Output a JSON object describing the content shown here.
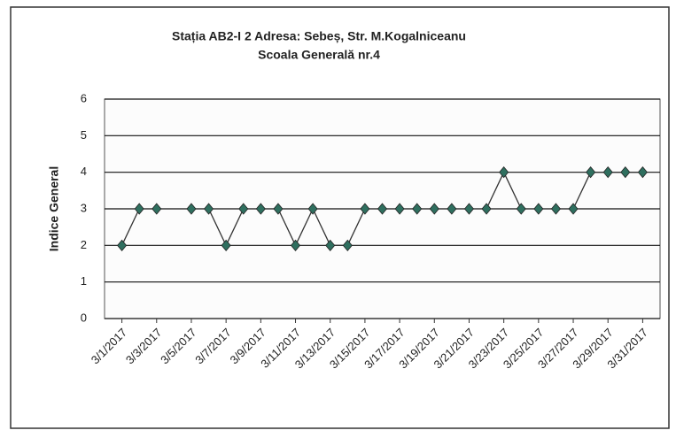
{
  "chart_data": {
    "type": "line",
    "title": [
      "Stația AB2-I 2  Adresa: Sebeș,  Str. M.Kogalniceanu",
      "Scoala Generală nr.4"
    ],
    "ylabel": "Indice General",
    "x": [
      "3/1/2017",
      "3/2/2017",
      "3/3/2017",
      "3/5/2017",
      "3/6/2017",
      "3/7/2017",
      "3/8/2017",
      "3/9/2017",
      "3/10/2017",
      "3/11/2017",
      "3/12/2017",
      "3/13/2017",
      "3/14/2017",
      "3/15/2017",
      "3/16/2017",
      "3/17/2017",
      "3/18/2017",
      "3/19/2017",
      "3/20/2017",
      "3/21/2017",
      "3/22/2017",
      "3/23/2017",
      "3/24/2017",
      "3/25/2017",
      "3/26/2017",
      "3/27/2017",
      "3/28/2017",
      "3/29/2017",
      "3/30/2017",
      "3/31/2017"
    ],
    "series": [
      {
        "name": "Indice General",
        "color": "#2f6f5f",
        "values": [
          2,
          3,
          3,
          3,
          3,
          2,
          3,
          3,
          3,
          2,
          3,
          2,
          2,
          3,
          3,
          3,
          3,
          3,
          3,
          3,
          3,
          4,
          3,
          3,
          3,
          3,
          4,
          4,
          4,
          4
        ]
      }
    ],
    "xlim": [
      "2/28/2017",
      "4/1/2017"
    ],
    "xticks": [
      "3/1/2017",
      "3/3/2017",
      "3/5/2017",
      "3/7/2017",
      "3/9/2017",
      "3/11/2017",
      "3/13/2017",
      "3/15/2017",
      "3/17/2017",
      "3/19/2017",
      "3/21/2017",
      "3/23/2017",
      "3/25/2017",
      "3/27/2017",
      "3/29/2017",
      "3/31/2017"
    ],
    "ylim": [
      0,
      6
    ],
    "yticks": [
      0,
      1,
      2,
      3,
      4,
      5,
      6
    ],
    "grid": true
  }
}
